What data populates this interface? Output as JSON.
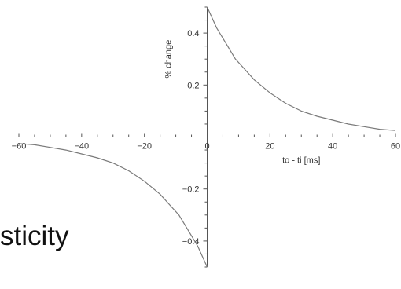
{
  "slide_text": "sticity",
  "chart_data": {
    "type": "line",
    "xlabel": "to - ti [ms]",
    "ylabel": "% change",
    "xlim": [
      -60,
      60
    ],
    "ylim": [
      -0.5,
      0.5
    ],
    "x_ticks": [
      -60,
      -40,
      -20,
      0,
      20,
      40,
      60
    ],
    "y_ticks": [
      -0.4,
      -0.2,
      0.2,
      0.4
    ],
    "grid": false,
    "colors": {
      "line": "#7a7a7a",
      "axis": "#555555"
    },
    "series": [
      {
        "x": [
          0.0,
          3.0,
          6.0,
          9.0,
          12.0,
          15.0,
          20.0,
          25.0,
          30.0,
          35.0,
          40.0,
          45.0,
          50.0,
          55.0,
          60.0
        ],
        "y": [
          0.5,
          0.42,
          0.36,
          0.3,
          0.26,
          0.22,
          0.17,
          0.13,
          0.1,
          0.08,
          0.065,
          0.05,
          0.04,
          0.03,
          0.025
        ]
      },
      {
        "x": [
          -60.0,
          -55.0,
          -50.0,
          -45.0,
          -40.0,
          -35.0,
          -30.0,
          -25.0,
          -20.0,
          -15.0,
          -12.0,
          -9.0,
          -6.0,
          -3.0,
          0.0
        ],
        "y": [
          -0.025,
          -0.03,
          -0.04,
          -0.05,
          -0.065,
          -0.08,
          -0.1,
          -0.13,
          -0.17,
          -0.22,
          -0.26,
          -0.3,
          -0.36,
          -0.42,
          -0.5
        ]
      }
    ]
  }
}
